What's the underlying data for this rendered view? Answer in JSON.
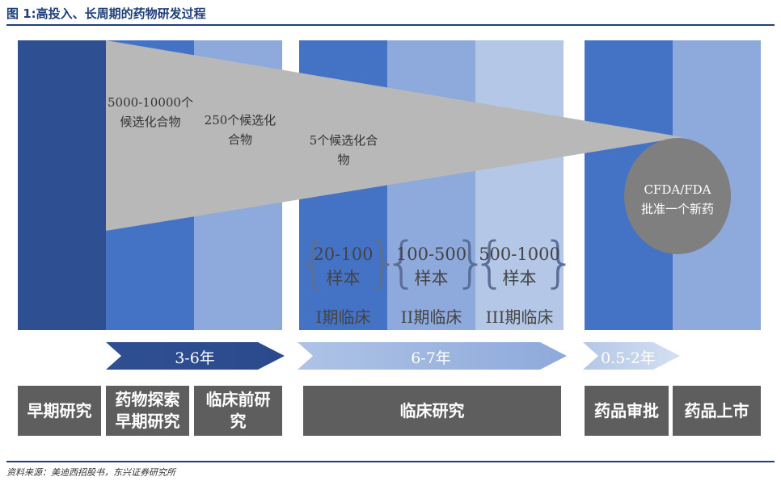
{
  "title": "图 1:高投入、长周期的药物研发过程",
  "triangle_labels": {
    "t1_line1": "5000-10000个",
    "t1_line2": "候选化合物",
    "t2_line1": "250个候选化",
    "t2_line2": "合物",
    "t3_line1": "5个候选化合",
    "t3_line2": "物"
  },
  "approval_label_line1": "CFDA/FDA",
  "approval_label_line2": "批准一个新药",
  "clinical_phases": [
    {
      "sample_line1": "20-100",
      "sample_line2": "样本",
      "phase": "I期临床"
    },
    {
      "sample_line1": "100-500",
      "sample_line2": "样本",
      "phase": "II期临床"
    },
    {
      "sample_line1": "500-1000",
      "sample_line2": "样本",
      "phase": "III期临床"
    }
  ],
  "durations": {
    "preclinical": "3-6年",
    "clinical": "6-7年",
    "approval": "0.5-2年"
  },
  "stages": [
    {
      "label": "早期研究"
    },
    {
      "label": "药物探索\n早期研究"
    },
    {
      "label": "临床前研\n究"
    },
    {
      "label": "临床研究"
    },
    {
      "label": "药品审批"
    },
    {
      "label": "药品上市"
    }
  ],
  "source": "资料来源：美迪西招股书，东兴证券研究所",
  "colors": {
    "navy": "#2f4f93",
    "blue": "#4472c4",
    "mid_blue": "#8ea9db",
    "light_blue": "#b4c7e7",
    "gray_triangle": "#b8b8b8",
    "gray_circle": "#7f7f7f",
    "stage_box": "#5e5e5e",
    "title_blue": "#1f3f7a"
  }
}
